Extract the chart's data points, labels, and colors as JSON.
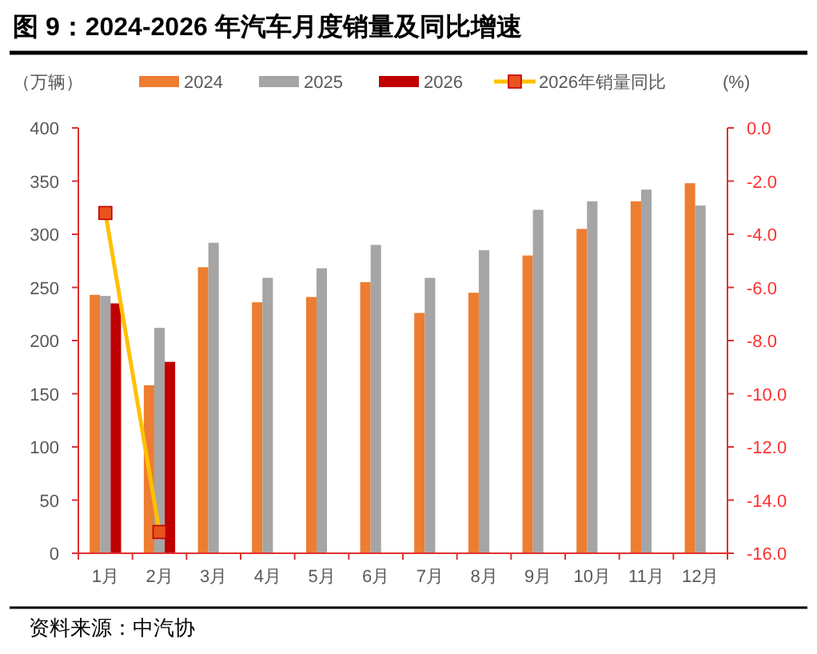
{
  "chart_data": {
    "type": "bar",
    "title": "图 9：2024-2026 年汽车月度销量及同比增速",
    "ylabel": "（万辆）",
    "y2label": "(%)",
    "categories": [
      "1月",
      "2月",
      "3月",
      "4月",
      "5月",
      "6月",
      "7月",
      "8月",
      "9月",
      "10月",
      "11月",
      "12月"
    ],
    "series": [
      {
        "name": "2024",
        "color": "#ed7d31",
        "values": [
          243,
          158,
          269,
          236,
          241,
          255,
          226,
          245,
          280,
          305,
          331,
          348
        ]
      },
      {
        "name": "2025",
        "color": "#a5a5a5",
        "values": [
          242,
          212,
          292,
          259,
          268,
          290,
          259,
          285,
          323,
          331,
          342,
          327
        ]
      },
      {
        "name": "2026",
        "color": "#c00000",
        "values": [
          235,
          180,
          null,
          null,
          null,
          null,
          null,
          null,
          null,
          null,
          null,
          null
        ]
      },
      {
        "name": "2026年销量同比",
        "type": "line",
        "axis": "y2",
        "marker": "square",
        "color": "#ffc000",
        "values": [
          -3.2,
          -15.2,
          null,
          null,
          null,
          null,
          null,
          null,
          null,
          null,
          null,
          null
        ]
      }
    ],
    "ylim": [
      0,
      400
    ],
    "yticks": [
      0,
      50,
      100,
      150,
      200,
      250,
      300,
      350,
      400
    ],
    "y2lim": [
      -16,
      0
    ],
    "y2ticks": [
      {
        "value": 0,
        "label": "0.0"
      },
      {
        "value": -2,
        "label": "-2.0"
      },
      {
        "value": -4,
        "label": "-4.0"
      },
      {
        "value": -6,
        "label": "-6.0"
      },
      {
        "value": -8,
        "label": "-8.0"
      },
      {
        "value": -10,
        "label": "-10.0"
      },
      {
        "value": -12,
        "label": "-12.0"
      },
      {
        "value": -14,
        "label": "-14.0"
      },
      {
        "value": -16,
        "label": "-16.0"
      }
    ],
    "legend": "top",
    "grid": false,
    "annotations": [
      "资料来源：中汽协"
    ]
  }
}
